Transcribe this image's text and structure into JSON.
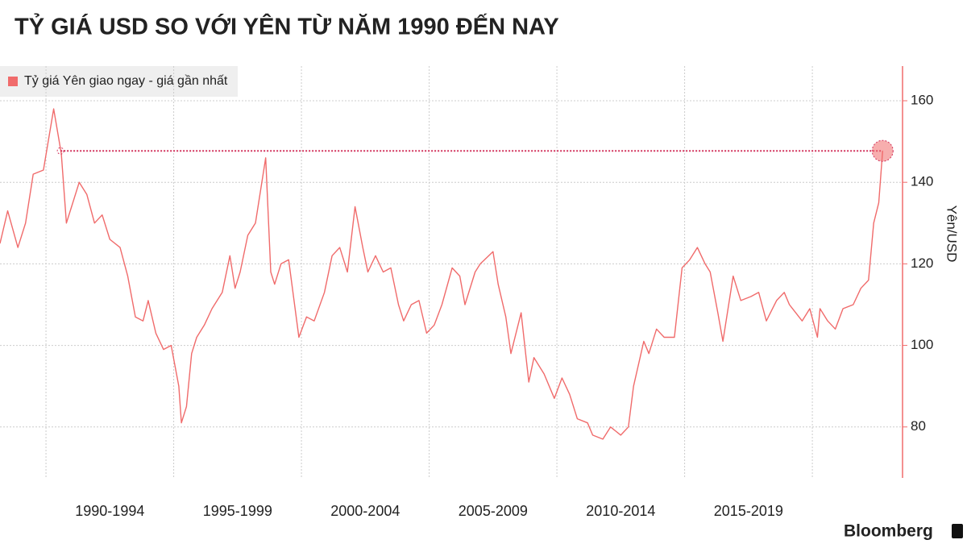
{
  "chart_data": {
    "type": "line",
    "title": "TỶ GIÁ USD SO VỚI YÊN TỪ NĂM 1990 ĐẾN NAY",
    "y_label": "Yên/USD",
    "source": "Bloomberg",
    "x": [
      1988.2,
      1988.5,
      1988.9,
      1989.2,
      1989.5,
      1989.9,
      1990.3,
      1990.6,
      1990.8,
      1991.0,
      1991.3,
      1991.6,
      1991.9,
      1992.2,
      1992.5,
      1992.9,
      1993.2,
      1993.5,
      1993.8,
      1994.0,
      1994.3,
      1994.6,
      1994.9,
      1995.2,
      1995.3,
      1995.5,
      1995.7,
      1995.9,
      1996.2,
      1996.5,
      1996.9,
      1997.2,
      1997.4,
      1997.6,
      1997.9,
      1998.2,
      1998.6,
      1998.8,
      1998.95,
      1999.2,
      1999.5,
      1999.9,
      2000.2,
      2000.5,
      2000.9,
      2001.2,
      2001.5,
      2001.8,
      2002.1,
      2002.4,
      2002.6,
      2002.9,
      2003.2,
      2003.5,
      2003.8,
      2004.0,
      2004.3,
      2004.6,
      2004.9,
      2005.2,
      2005.5,
      2005.9,
      2006.2,
      2006.4,
      2006.8,
      2007.0,
      2007.5,
      2007.7,
      2008.0,
      2008.2,
      2008.6,
      2008.9,
      2009.1,
      2009.5,
      2009.9,
      2010.2,
      2010.5,
      2010.8,
      2011.2,
      2011.4,
      2011.8,
      2012.1,
      2012.5,
      2012.8,
      2013.0,
      2013.4,
      2013.6,
      2013.9,
      2014.2,
      2014.6,
      2014.9,
      2015.2,
      2015.5,
      2015.8,
      2016.0,
      2016.3,
      2016.5,
      2016.9,
      2017.2,
      2017.6,
      2017.9,
      2018.2,
      2018.6,
      2018.9,
      2019.1,
      2019.6,
      2019.9,
      2020.2,
      2020.3,
      2020.6,
      2020.9,
      2021.2,
      2021.6,
      2021.9,
      2022.2,
      2022.4,
      2022.6,
      2022.75
    ],
    "series": [
      {
        "name": "Tỷ giá Yên giao ngay - giá gần nhất",
        "color": "#f06b6b",
        "values": [
          125,
          133,
          124,
          130,
          142,
          143,
          158,
          147,
          130,
          134,
          140,
          137,
          130,
          132,
          126,
          124,
          117,
          107,
          106,
          111,
          103,
          99,
          100,
          90,
          81,
          85,
          98,
          102,
          105,
          109,
          113,
          122,
          114,
          118,
          127,
          130,
          146,
          118,
          115,
          120,
          121,
          102,
          107,
          106,
          113,
          122,
          124,
          118,
          134,
          124,
          118,
          122,
          118,
          119,
          110,
          106,
          110,
          111,
          103,
          105,
          110,
          119,
          117,
          110,
          118,
          120,
          123,
          115,
          107,
          98,
          108,
          91,
          97,
          93,
          87,
          92,
          88,
          82,
          81,
          78,
          77,
          80,
          78,
          80,
          90,
          101,
          98,
          104,
          102,
          102,
          119,
          121,
          124,
          120,
          118,
          108,
          101,
          117,
          111,
          112,
          113,
          106,
          111,
          113,
          110,
          106,
          109,
          102,
          109,
          106,
          104,
          109,
          110,
          114,
          116,
          130,
          135,
          147.7
        ]
      }
    ],
    "reference": {
      "x": [
        1990.57,
        2022.75
      ],
      "y": 147.7
    },
    "xlim": [
      1988.2,
      2023.53
    ],
    "xgrid": [
      1990,
      1995,
      2000,
      2005,
      2010,
      2015,
      2020
    ],
    "xticks": [
      {
        "value": 1992.5,
        "label": "1990-1994"
      },
      {
        "value": 1997.5,
        "label": "1995-1999"
      },
      {
        "value": 2002.5,
        "label": "2000-2004"
      },
      {
        "value": 2007.5,
        "label": "2005-2009"
      },
      {
        "value": 2012.5,
        "label": "2010-2014"
      },
      {
        "value": 2017.5,
        "label": "2015-2019"
      }
    ],
    "ylim": [
      67.5,
      168.5
    ],
    "yticks": [
      80,
      100,
      120,
      140,
      160
    ],
    "grid": true
  }
}
